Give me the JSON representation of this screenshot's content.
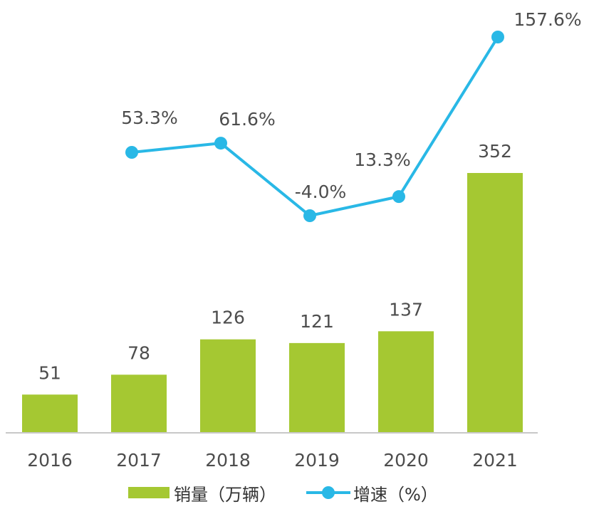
{
  "chart_data": {
    "type": "bar+line",
    "categories": [
      "2016",
      "2017",
      "2018",
      "2019",
      "2020",
      "2021"
    ],
    "series": [
      {
        "name": "销量（万辆）",
        "type": "bar",
        "values": [
          51,
          78,
          126,
          121,
          137,
          352
        ],
        "labels": [
          "51",
          "78",
          "126",
          "121",
          "137",
          "352"
        ],
        "color": "#a5c832"
      },
      {
        "name": "增速（%）",
        "type": "line",
        "values": [
          null,
          53.3,
          61.6,
          -4.0,
          13.3,
          157.6
        ],
        "labels": [
          "",
          "53.3%",
          "61.6%",
          "-4.0%",
          "13.3%",
          "157.6%"
        ],
        "color": "#29b8e6"
      }
    ],
    "bar_ylim": [
      0,
      420
    ],
    "line_ylim": [
      -70,
      170
    ],
    "legend_position": "bottom",
    "grid": false
  },
  "colors": {
    "axis": "#c8c8c8",
    "text": "#4d4d4d"
  }
}
